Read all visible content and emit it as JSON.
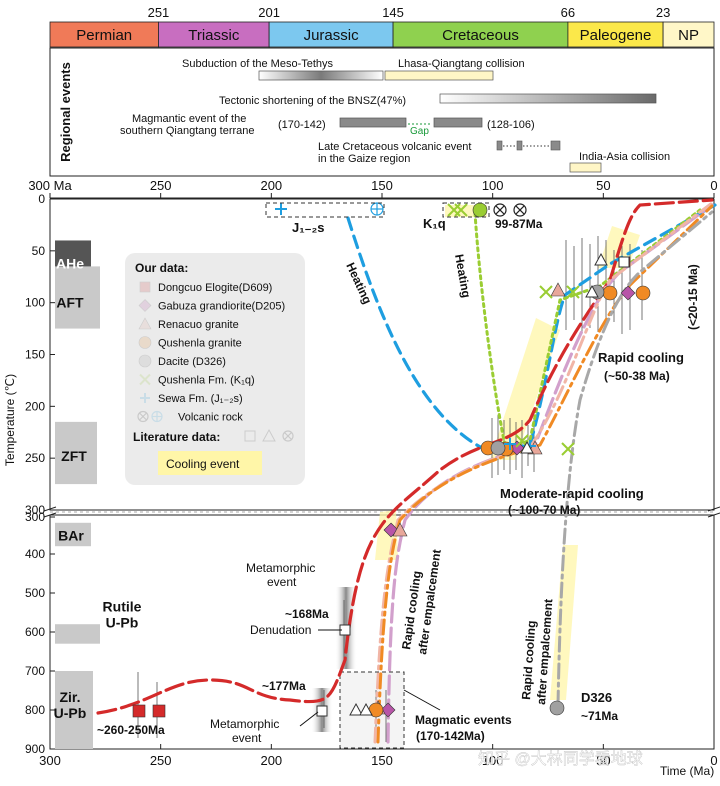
{
  "periods": [
    {
      "name": "Permian",
      "start": 300,
      "end": 251,
      "color": "#f07a58"
    },
    {
      "name": "Triassic",
      "start": 251,
      "end": 201,
      "color": "#c86ec0"
    },
    {
      "name": "Jurassic",
      "start": 201,
      "end": 145,
      "color": "#7cc8ef"
    },
    {
      "name": "Cretaceous",
      "start": 145,
      "end": 66,
      "color": "#8fd14f"
    },
    {
      "name": "Paleogene",
      "start": 66,
      "end": 23,
      "color": "#fbe84a"
    },
    {
      "name": "NP",
      "start": 23,
      "end": 0,
      "color": "#fff7c8"
    }
  ],
  "boundary_ages": [
    "251",
    "201",
    "145",
    "66",
    "23"
  ],
  "regional_events_title": "Regional events",
  "events": {
    "meso_tethys": "Subduction of the Meso-Tethys",
    "lhasa_qiangtang": "Lhasa-Qiangtang collision",
    "bnsz": "Tectonic shortening of the BNSZ(47%)",
    "magmatic_l1": "Magmantic event of the",
    "magmatic_l2": "southern Qiangtang terrane",
    "magmatic_range1": "(170-142)",
    "magmatic_range2": "(128-106)",
    "gap": "Gap",
    "gaize_l1": "Late Cretaceous volcanic event",
    "gaize_l2": "in the Gaize region",
    "india_asia": "India-Asia collision"
  },
  "axes": {
    "top_ticks": [
      "300 Ma",
      "250",
      "200",
      "150",
      "100",
      "50",
      "0"
    ],
    "bottom_ticks": [
      "300",
      "250",
      "200",
      "150",
      "100",
      "50",
      "0"
    ],
    "y_ticks_upper": [
      "0",
      "50",
      "100",
      "150",
      "200",
      "250",
      "300"
    ],
    "y_ticks_lower": [
      "300",
      "400",
      "500",
      "600",
      "700",
      "800",
      "900"
    ],
    "y_label": "Temperature (℃)",
    "x_label": "Time (Ma)"
  },
  "thermo_systems": [
    "AHe",
    "AFT",
    "ZFT",
    "BAr",
    "Rutile U-Pb",
    "Zir. U-Pb"
  ],
  "legend": {
    "title": "Our data:",
    "items": [
      {
        "label": "Dongcuo Elogite(D609)",
        "symbol": "square",
        "color": "#d42a2a"
      },
      {
        "label": "Gabuza grandiorite(D205)",
        "symbol": "diamond",
        "color": "#b855a8"
      },
      {
        "label": "Renacuo granite",
        "symbol": "triangle",
        "color": "#e8a79a"
      },
      {
        "label": "Qushenla granite",
        "symbol": "circle",
        "color": "#f08a24"
      },
      {
        "label": "Dacite (D326)",
        "symbol": "circle",
        "color": "#a0a0a0"
      },
      {
        "label": "Qushenla Fm. (K₁q)",
        "symbol": "cross",
        "color": "#9acd32"
      },
      {
        "label": "Sewa Fm. (J₁₋₂s)",
        "symbol": "plus",
        "color": "#1e9ee0"
      },
      {
        "label": "Volcanic rock",
        "symbol": "volc",
        "color": "#222222"
      }
    ],
    "literature": "Literature data:",
    "cooling": "Cooling event"
  },
  "annotations": {
    "j12s": "J₁₋₂s",
    "k1q": "K₁q",
    "volc_age": "99-87Ma",
    "heating": "Heating",
    "rapid_cooling": "Rapid cooling",
    "rapid_cooling_age": "(~50-38 Ma)",
    "late_cooling": "(<20-15 Ma)",
    "moderate": "Moderate-rapid cooling",
    "moderate_age": "(~100-70 Ma)",
    "metamorphic_event": "Metamorphic",
    "metamorphic_event2": "event",
    "age_168": "~168Ma",
    "denudation": "Denudation",
    "age_177": "~177Ma",
    "age_260": "~260-250Ma",
    "magmatic_events": "Magmatic events",
    "magmatic_range": "(170-142Ma)",
    "rapid_emplace1": "Rapid cooling",
    "rapid_emplace2": "after empalcement",
    "d326": "D326",
    "d326_age": "~71Ma"
  },
  "watermark": "知乎 @大林同学看地球"
}
